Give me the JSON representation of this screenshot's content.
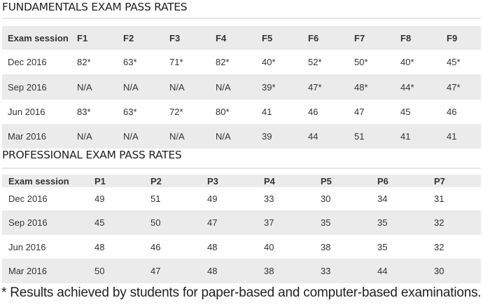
{
  "fundamentals": {
    "title": "FUNDAMENTALS EXAM PASS RATES",
    "headers": [
      "Exam session",
      "F1",
      "F2",
      "F3",
      "F4",
      "F5",
      "F6",
      "F7",
      "F8",
      "F9"
    ],
    "rows": [
      [
        "Dec 2016",
        "82*",
        "63*",
        "71*",
        "82*",
        "40*",
        "52*",
        "50*",
        "40*",
        "45*"
      ],
      [
        "Sep 2016",
        "N/A",
        "N/A",
        "N/A",
        "N/A",
        "39*",
        "47*",
        "48*",
        "44*",
        "47*"
      ],
      [
        "Jun 2016",
        "83*",
        "63*",
        "72*",
        "80*",
        "41",
        "46",
        "47",
        "45",
        "46"
      ],
      [
        "Mar 2016",
        "N/A",
        "N/A",
        "N/A",
        "N/A",
        "39",
        "44",
        "51",
        "41",
        "41"
      ]
    ]
  },
  "professional": {
    "title": "PROFESSIONAL EXAM PASS RATES",
    "headers": [
      "Exam session",
      "P1",
      "P2",
      "P3",
      "P4",
      "P5",
      "P6",
      "P7"
    ],
    "rows": [
      [
        "Dec 2016",
        "49",
        "51",
        "49",
        "33",
        "30",
        "34",
        "31"
      ],
      [
        "Sep 2016",
        "45",
        "50",
        "47",
        "37",
        "35",
        "35",
        "32"
      ],
      [
        "Jun 2016",
        "48",
        "46",
        "48",
        "40",
        "38",
        "35",
        "32"
      ],
      [
        "Mar 2016",
        "50",
        "47",
        "48",
        "38",
        "33",
        "44",
        "30"
      ]
    ]
  },
  "footnote": "* Results achieved by students for paper-based and computer-based examinations.",
  "colors": {
    "stripe": "#ebebeb",
    "text": "#333333"
  }
}
